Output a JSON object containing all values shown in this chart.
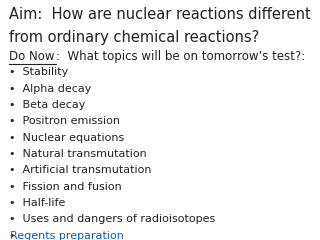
{
  "background_color": "#ffffff",
  "title_line1": "Aim:  How are nuclear reactions different",
  "title_line2": "from ordinary chemical reactions?",
  "title_fontsize": 10.5,
  "title_color": "#222222",
  "subtitle_label": "Do Now",
  "subtitle_rest": ":  What topics will be on tomorrow’s test?:",
  "subtitle_fontsize": 8.5,
  "subtitle_color": "#222222",
  "bullet_items": [
    "Stability",
    "Alpha decay",
    "Beta decay",
    "Positron emission",
    "Nuclear equations",
    "Natural transmutation",
    "Artificial transmutation",
    "Fission and fusion",
    "Half-life",
    "Uses and dangers of radioisotopes"
  ],
  "link_item": "Regents preparation",
  "link_color": "#1155CC",
  "bullet_fontsize": 8.0,
  "bullet_color": "#222222",
  "bullet_char": "•"
}
